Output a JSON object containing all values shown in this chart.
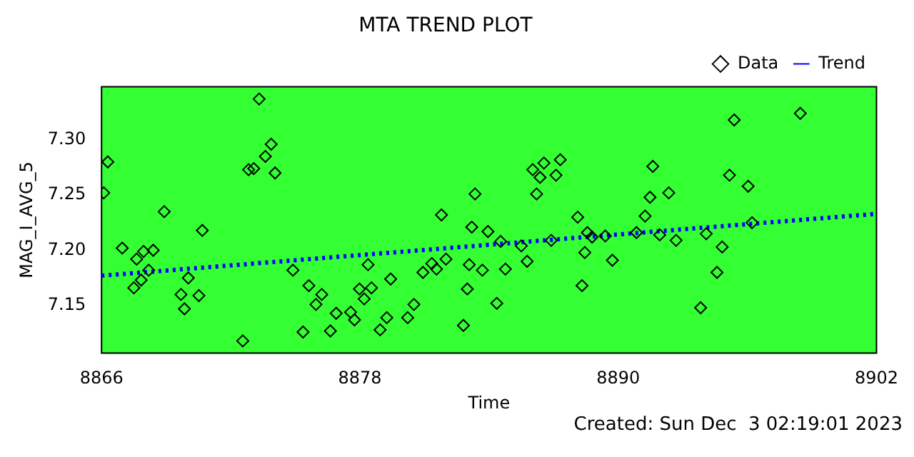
{
  "chart_data": {
    "type": "scatter",
    "title": "MTA TREND PLOT",
    "xlabel": "Time",
    "ylabel": "MAG_I_AVG_5",
    "xlim": [
      8866,
      8902
    ],
    "xticks": [
      8866,
      8878,
      8890,
      8902
    ],
    "ylim": [
      7.107,
      7.348
    ],
    "yticks": [
      {
        "value": 7.15,
        "label": "7.15"
      },
      {
        "value": 7.2,
        "label": "7.20"
      },
      {
        "value": 7.25,
        "label": "7.25"
      },
      {
        "value": 7.3,
        "label": "7.30"
      }
    ],
    "grid": false,
    "legend": "top right",
    "annotations": [
      "Created: Sun Dec  3 02:19:01 2023"
    ],
    "series": [
      {
        "name": "Data",
        "type": "scatter",
        "marker": "diamond",
        "color": "#000000",
        "x": [
          8866.29,
          8866.1,
          8866.96,
          8867.63,
          8867.5,
          8867.95,
          8868.4,
          8868.19,
          8867.84,
          8868.91,
          8870.03,
          8869.69,
          8869.85,
          8870.52,
          8870.68,
          8872.56,
          8872.83,
          8873.07,
          8873.32,
          8873.61,
          8873.88,
          8874.06,
          8874.89,
          8875.36,
          8875.63,
          8875.96,
          8876.23,
          8876.63,
          8876.9,
          8877.57,
          8877.75,
          8877.98,
          8878.2,
          8878.38,
          8878.54,
          8878.94,
          8879.43,
          8879.25,
          8880.22,
          8880.51,
          8880.93,
          8881.34,
          8881.56,
          8881.79,
          8882.0,
          8883.35,
          8883.2,
          8883.08,
          8882.99,
          8882.81,
          8883.69,
          8883.95,
          8884.36,
          8884.54,
          8884.76,
          8885.5,
          8885.77,
          8886.03,
          8886.21,
          8886.37,
          8886.55,
          8887.11,
          8887.31,
          8886.89,
          8888.12,
          8888.45,
          8888.32,
          8888.57,
          8888.79,
          8889.4,
          8889.73,
          8890.85,
          8891.25,
          8891.48,
          8891.61,
          8891.93,
          8892.35,
          8892.69,
          8893.83,
          8894.09,
          8894.59,
          8894.83,
          8895.17,
          8895.39,
          8896.04,
          8896.22,
          8898.46
        ],
        "values": [
          7.28,
          7.252,
          7.202,
          7.192,
          7.166,
          7.199,
          7.2,
          7.182,
          7.173,
          7.235,
          7.175,
          7.16,
          7.147,
          7.159,
          7.218,
          7.118,
          7.273,
          7.274,
          7.337,
          7.285,
          7.296,
          7.27,
          7.182,
          7.126,
          7.168,
          7.151,
          7.16,
          7.127,
          7.143,
          7.144,
          7.137,
          7.165,
          7.156,
          7.187,
          7.166,
          7.128,
          7.174,
          7.139,
          7.139,
          7.151,
          7.18,
          7.188,
          7.183,
          7.232,
          7.192,
          7.251,
          7.221,
          7.187,
          7.165,
          7.132,
          7.182,
          7.217,
          7.152,
          7.208,
          7.183,
          7.204,
          7.19,
          7.273,
          7.251,
          7.266,
          7.279,
          7.268,
          7.282,
          7.209,
          7.23,
          7.198,
          7.168,
          7.216,
          7.212,
          7.213,
          7.191,
          7.216,
          7.231,
          7.248,
          7.276,
          7.214,
          7.252,
          7.209,
          7.148,
          7.215,
          7.18,
          7.203,
          7.268,
          7.318,
          7.258,
          7.225,
          7.324
        ]
      },
      {
        "name": "Trend",
        "type": "line",
        "marker": "none",
        "line_style": "dotted",
        "color": "#0000ff",
        "x": [
          8866,
          8902
        ],
        "values": [
          7.177,
          7.233
        ]
      }
    ]
  }
}
